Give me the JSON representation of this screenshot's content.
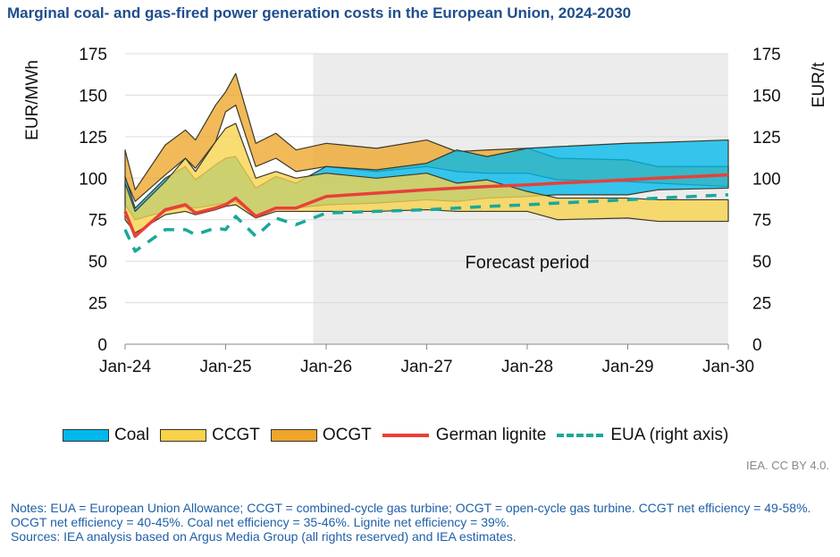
{
  "title": "Marginal coal- and gas-fired power generation costs in the European Union, 2024-2030",
  "credit": "IEA. CC BY 4.0.",
  "notes": [
    "Notes: EUA = European Union Allowance; CCGT = combined-cycle gas turbine; OCGT = open-cycle gas turbine. CCGT net efficiency = 49-58%. OCGT net efficiency = 40-45%. Coal net efficiency = 35-46%. Lignite net efficiency =  39%.",
    "Sources: IEA analysis based on Argus Media Group (all rights reserved) and IEA estimates."
  ],
  "chart_data": {
    "type": "area",
    "title": "Marginal coal- and gas-fired power generation costs in the European Union, 2024-2030",
    "ylabel": "EUR/MWh",
    "y2label": "EUR/t",
    "ylim": [
      0,
      175
    ],
    "y2lim": [
      0,
      175
    ],
    "yticks": [
      "0",
      "25",
      "50",
      "75",
      "100",
      "125",
      "150",
      "175"
    ],
    "xticks": [
      "Jan-24",
      "Jan-25",
      "Jan-26",
      "Jan-27",
      "Jan-28",
      "Jan-29",
      "Jan-30"
    ],
    "xlim": [
      2024,
      2030
    ],
    "grid": true,
    "legend_position": "bottom",
    "annotation": "Forecast period",
    "forecast_start": 2025.87,
    "x": [
      2024.0,
      2024.1,
      2024.4,
      2024.6,
      2024.7,
      2024.9,
      2025.0,
      2025.1,
      2025.3,
      2025.5,
      2025.7,
      2026.0,
      2026.5,
      2027.0,
      2027.3,
      2027.6,
      2028.0,
      2028.3,
      2029.0,
      2029.3,
      2030.0
    ],
    "series": [
      {
        "name": "Coal",
        "kind": "band",
        "color": "#00b8ec",
        "low": [
          84,
          75,
          80,
          83,
          82,
          84,
          85,
          86,
          77,
          82,
          82,
          84,
          85,
          87,
          86,
          88,
          89,
          90,
          90,
          93,
          94
        ],
        "high": [
          101,
          82,
          100,
          107,
          99,
          108,
          112,
          113,
          94,
          101,
          97,
          107,
          105,
          109,
          117,
          113,
          118,
          119,
          121,
          121.5,
          123
        ]
      },
      {
        "name": "CCGT",
        "kind": "band",
        "color": "#f7d24a",
        "low": [
          75,
          67,
          78,
          80,
          78,
          81,
          83,
          84,
          76,
          80,
          80,
          80,
          80,
          81,
          80,
          80,
          80,
          75,
          76,
          74,
          74
        ],
        "high": [
          97,
          80,
          98,
          112,
          104,
          122,
          130,
          133,
          100,
          104,
          100,
          103,
          100,
          103,
          97,
          99,
          92,
          88,
          88,
          87,
          87
        ]
      },
      {
        "name": "OCGT",
        "kind": "band",
        "color": "#eea52a",
        "low": [
          100,
          86,
          102,
          112,
          106,
          122,
          140,
          144,
          107,
          112,
          104,
          107,
          104,
          107,
          104,
          103,
          103,
          99,
          98,
          97,
          95
        ],
        "high": [
          117,
          93,
          120,
          129,
          123,
          144,
          152,
          163,
          121,
          127,
          117,
          121,
          118,
          123,
          116,
          117,
          118,
          112,
          111,
          107,
          107
        ]
      },
      {
        "name": "German lignite",
        "kind": "line",
        "color": "#e8403a",
        "values": [
          80,
          65,
          81,
          84,
          79,
          82,
          84,
          88,
          77,
          82,
          82,
          89,
          91,
          93,
          94,
          95,
          96,
          97,
          99,
          100,
          102
        ]
      },
      {
        "name": "EUA (right axis)",
        "kind": "dashed",
        "axis": "right",
        "color": "#1aa89a",
        "values": [
          69,
          56,
          69,
          69,
          66,
          70,
          69,
          77,
          65,
          76,
          72,
          79,
          80,
          81,
          82,
          83,
          84,
          85,
          87,
          88,
          90
        ]
      }
    ]
  }
}
